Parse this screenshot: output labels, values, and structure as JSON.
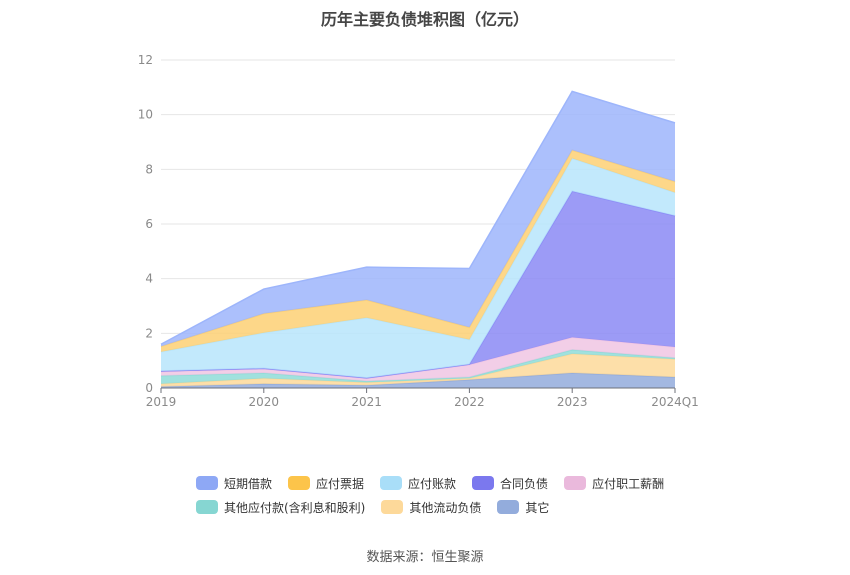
{
  "title": "历年主要负债堆积图（亿元）",
  "source": "数据来源：恒生聚源",
  "chart_data": {
    "type": "area",
    "stacked": true,
    "categories": [
      "2019",
      "2020",
      "2021",
      "2022",
      "2023",
      "2024Q1"
    ],
    "ylim": [
      0,
      12
    ],
    "yticks": [
      0,
      2,
      4,
      6,
      8,
      10,
      12
    ],
    "grid": true,
    "legend_position": "bottom",
    "series": [
      {
        "name": "其它",
        "color": "#93acdc",
        "values": [
          0.05,
          0.15,
          0.1,
          0.3,
          0.55,
          0.4
        ]
      },
      {
        "name": "其他流动负债",
        "color": "#fdd99a",
        "values": [
          0.1,
          0.2,
          0.1,
          0.05,
          0.7,
          0.65
        ]
      },
      {
        "name": "其他应付款(含利息和股利)",
        "color": "#8fdcd8",
        "values": [
          0.3,
          0.2,
          0.05,
          0.05,
          0.15,
          0.05
        ]
      },
      {
        "name": "应付职工薪酬",
        "color": "#f0c5e3",
        "values": [
          0.15,
          0.15,
          0.1,
          0.45,
          0.45,
          0.4
        ]
      },
      {
        "name": "合同负债",
        "color": "#8b8af5",
        "values": [
          0.02,
          0.02,
          0.02,
          0.02,
          5.35,
          4.8
        ]
      },
      {
        "name": "应付账款",
        "color": "#b7e5fb",
        "values": [
          0.7,
          1.3,
          2.2,
          0.9,
          1.2,
          0.85
        ]
      },
      {
        "name": "应付票据",
        "color": "#fdd074",
        "values": [
          0.2,
          0.7,
          0.65,
          0.45,
          0.3,
          0.4
        ]
      },
      {
        "name": "短期借款",
        "color": "#9db5fb",
        "values": [
          0.08,
          0.9,
          1.2,
          2.15,
          2.15,
          2.15
        ]
      }
    ]
  },
  "legend": {
    "row1": [
      {
        "label": "短期借款",
        "color": "#8ea8f5"
      },
      {
        "label": "应付票据",
        "color": "#fcc44a"
      },
      {
        "label": "应付账款",
        "color": "#a9def8"
      },
      {
        "label": "合同负债",
        "color": "#7b78ee"
      },
      {
        "label": "应付职工薪酬",
        "color": "#eab9dc"
      }
    ],
    "row2": [
      {
        "label": "其他应付款(含利息和股利)",
        "color": "#86d6d2"
      },
      {
        "label": "其他流动负债",
        "color": "#fdd99a"
      },
      {
        "label": "其它",
        "color": "#93acdc"
      }
    ]
  }
}
